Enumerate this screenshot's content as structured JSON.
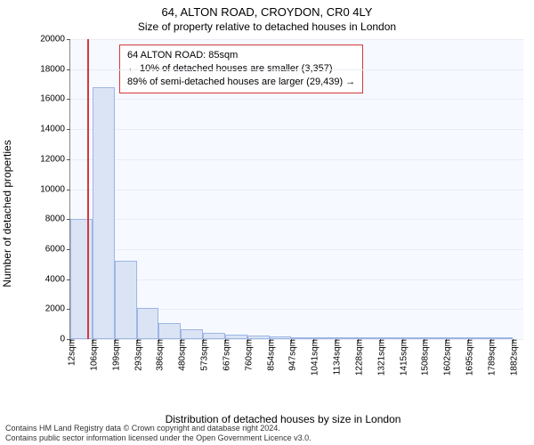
{
  "header": {
    "address": "64, ALTON ROAD, CROYDON, CR0 4LY",
    "subtitle": "Size of property relative to detached houses in London"
  },
  "chart": {
    "type": "histogram",
    "background_color": "#f6f9ff",
    "grid_color": "#e8ecf4",
    "axis_color": "#888888",
    "ylabel": "Number of detached properties",
    "xlabel": "Distribution of detached houses by size in London",
    "ylim": [
      0,
      20000
    ],
    "yticks": [
      0,
      2000,
      4000,
      6000,
      8000,
      10000,
      12000,
      14000,
      16000,
      18000,
      20000
    ],
    "xticks": [
      "12sqm",
      "106sqm",
      "199sqm",
      "293sqm",
      "386sqm",
      "480sqm",
      "573sqm",
      "667sqm",
      "760sqm",
      "854sqm",
      "947sqm",
      "1041sqm",
      "1134sqm",
      "1228sqm",
      "1321sqm",
      "1415sqm",
      "1508sqm",
      "1602sqm",
      "1695sqm",
      "1789sqm",
      "1882sqm"
    ],
    "x_range": [
      12,
      1928
    ],
    "bar_color": "#dbe4f5",
    "bar_border_color": "#9db6e4",
    "bars": [
      {
        "x0": 12,
        "x1": 106,
        "y": 8000
      },
      {
        "x0": 106,
        "x1": 199,
        "y": 16800
      },
      {
        "x0": 199,
        "x1": 293,
        "y": 5200
      },
      {
        "x0": 293,
        "x1": 386,
        "y": 2100
      },
      {
        "x0": 386,
        "x1": 480,
        "y": 1050
      },
      {
        "x0": 480,
        "x1": 573,
        "y": 650
      },
      {
        "x0": 573,
        "x1": 667,
        "y": 400
      },
      {
        "x0": 667,
        "x1": 760,
        "y": 300
      },
      {
        "x0": 760,
        "x1": 854,
        "y": 260
      },
      {
        "x0": 854,
        "x1": 947,
        "y": 180
      },
      {
        "x0": 947,
        "x1": 1041,
        "y": 130
      },
      {
        "x0": 1041,
        "x1": 1134,
        "y": 90
      },
      {
        "x0": 1134,
        "x1": 1228,
        "y": 60
      },
      {
        "x0": 1228,
        "x1": 1321,
        "y": 45
      },
      {
        "x0": 1321,
        "x1": 1415,
        "y": 35
      },
      {
        "x0": 1415,
        "x1": 1508,
        "y": 30
      },
      {
        "x0": 1508,
        "x1": 1602,
        "y": 25
      },
      {
        "x0": 1602,
        "x1": 1695,
        "y": 20
      },
      {
        "x0": 1695,
        "x1": 1789,
        "y": 18
      },
      {
        "x0": 1789,
        "x1": 1882,
        "y": 15
      }
    ],
    "marker": {
      "x": 85,
      "color": "#d23a3a"
    },
    "callout": {
      "border_color": "#d23a3a",
      "line1": "64 ALTON ROAD: 85sqm",
      "line2": "← 10% of detached houses are smaller (3,357)",
      "line3": "89% of semi-detached houses are larger (29,439) →"
    }
  },
  "footer": {
    "line1": "Contains HM Land Registry data © Crown copyright and database right 2024.",
    "line2": "Contains public sector information licensed under the Open Government Licence v3.0."
  }
}
